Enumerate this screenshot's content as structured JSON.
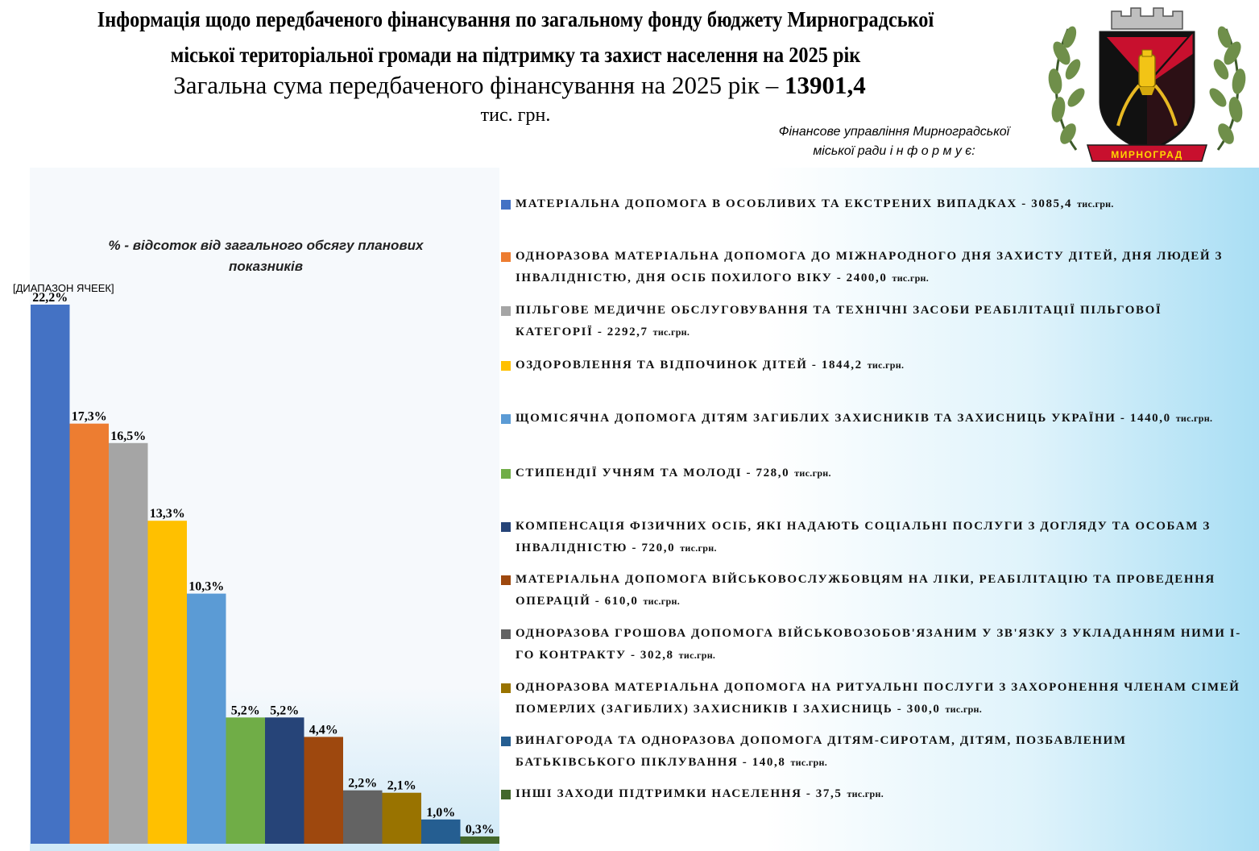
{
  "header": {
    "title": "Інформація щодо передбаченого фінансування по загальному фонду бюджету Мирноградської міської територіальної громади на підтримку та  захист населення на 2025 рік",
    "total_prefix": "Загальна сума передбаченого фінансування  на 2025 рік – ",
    "total_value": "13901,4",
    "total_units": "тис. грн.",
    "info_line1": "Фінансове управління Мирноградської",
    "info_line2": "міської ради     і н ф о р м у є:",
    "crest_text": "МИРНОГРАД"
  },
  "chart_data": {
    "type": "bar",
    "subtitle": "% - відсоток від загального обсягу планових показників",
    "range_label": "[ДИАПАЗОН ЯЧЕЕК]",
    "values": [
      22.2,
      17.3,
      16.5,
      13.3,
      10.3,
      5.2,
      5.2,
      4.4,
      2.2,
      2.1,
      1.0,
      0.3
    ],
    "data_labels": [
      "22,2%",
      "17,3%",
      "16,5%",
      "13,3%",
      "10,3%",
      "5,2%",
      "5,2%",
      "4,4%",
      "2,2%",
      "2,1%",
      "1,0%",
      "0,3%"
    ],
    "colors": [
      "#4472C4",
      "#ED7D31",
      "#A5A5A5",
      "#FFC000",
      "#5B9BD5",
      "#70AD47",
      "#264478",
      "#9E480E",
      "#636363",
      "#997300",
      "#255E91",
      "#43682B"
    ],
    "ylim": [
      0,
      25
    ],
    "grid": false,
    "legend_position": "right",
    "categories": [
      {
        "name": "МАТЕРІАЛЬНА ДОПОМОГА  В  ОСОБЛИВИХ  ТА  ЕКСТРЕНИХ  ВИПАДКАХ  - 3085,4",
        "unit": "тис.грн."
      },
      {
        "name": "ОДНОРАЗОВА  МАТЕРІАЛЬНА  ДОПОМОГА  ДО  МІЖНАРОДНОГО  ДНЯ  ЗАХИСТУ  ДІТЕЙ,  ДНЯ  ЛЮДЕЙ З  ІНВАЛІДНІСТЮ,  ДНЯ  ОСІБ  ПОХИЛОГО  ВІКУ  - 2400,0",
        "unit": "тис.грн."
      },
      {
        "name": "ПІЛЬГОВЕ  МЕДИЧНЕ  ОБСЛУГОВУВАННЯ  ТА  ТЕХНІЧНІ  ЗАСОБИ  РЕАБІЛІТАЦІЇ  ПІЛЬГОВОЇ КАТЕГОРІЇ  - 2292,7",
        "unit": "тис.грн."
      },
      {
        "name": "ОЗДОРОВЛЕННЯ  ТА  ВІДПОЧИНОК  ДІТЕЙ  - 1844,2",
        "unit": "тис.грн."
      },
      {
        "name": "ЩОМІСЯЧНА  ДОПОМОГА  ДІТЯМ  ЗАГИБЛИХ  ЗАХИСНИКІВ  ТА  ЗАХИСНИЦЬ  УКРАЇНИ  - 1440,0",
        "unit": "тис.грн."
      },
      {
        "name": "СТИПЕНДІЇ  УЧНЯМ  ТА  МОЛОДІ  - 728,0",
        "unit": "тис.грн."
      },
      {
        "name": "КОМПЕНСАЦІЯ  ФІЗИЧНИХ  ОСІБ,  ЯКІ  НАДАЮТЬ  СОЦІАЛЬНІ  ПОСЛУГИ  З  ДОГЛЯДУ  ТА  ОСОБАМ  З ІНВАЛІДНІСТЮ  - 720,0",
        "unit": "тис.грн."
      },
      {
        "name": "МАТЕРІАЛЬНА  ДОПОМОГА  ВІЙСЬКОВОСЛУЖБОВЦЯМ  НА  ЛІКИ,  РЕАБІЛІТАЦІЮ  ТА ПРОВЕДЕННЯ  ОПЕРАЦІЙ  - 610,0",
        "unit": "тис.грн."
      },
      {
        "name": "ОДНОРАЗОВА  ГРОШОВА  ДОПОМОГА  ВІЙСЬКОВОЗОБОВ'ЯЗАНИМ  У  ЗВ'ЯЗКУ  З  УКЛАДАННЯМ НИМИ  І-ГО  КОНТРАКТУ  - 302,8",
        "unit": "тис.грн."
      },
      {
        "name": "ОДНОРАЗОВА  МАТЕРІАЛЬНА  ДОПОМОГА  НА  РИТУАЛЬНІ  ПОСЛУГИ  З  ЗАХОРОНЕННЯ  ЧЛЕНАМ СІМЕЙ  ПОМЕРЛИХ  (ЗАГИБЛИХ)  ЗАХИСНИКІВ  І  ЗАХИСНИЦЬ  - 300,0",
        "unit": "тис.грн."
      },
      {
        "name": "ВИНАГОРОДА  ТА  ОДНОРАЗОВА  ДОПОМОГА  ДІТЯМ-СИРОТАМ,  ДІТЯМ,  ПОЗБАВЛЕНИМ БАТЬКІВСЬКОГО  ПІКЛУВАННЯ  - 140,8",
        "unit": "тис.грн."
      },
      {
        "name": "ІНШІ  ЗАХОДИ  ПІДТРИМКИ  НАСЕЛЕННЯ  - 37,5",
        "unit": "тис.грн."
      }
    ]
  }
}
